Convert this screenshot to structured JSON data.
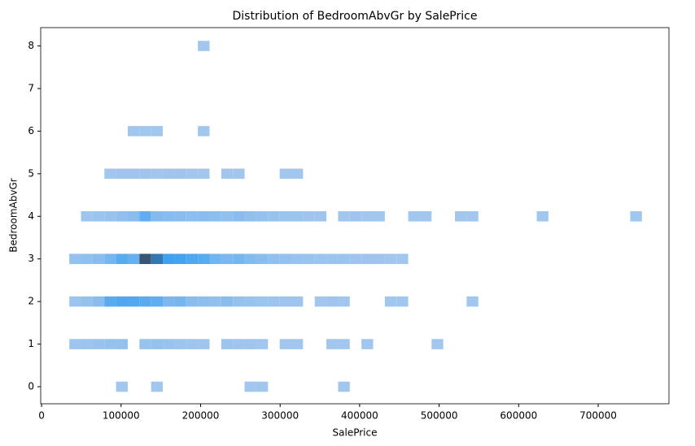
{
  "chart_data": {
    "type": "heatmap",
    "title": "Distribution of BedroomAbvGr by SalePrice",
    "x_label": "SalePrice",
    "y_label": "BedroomAbvGr",
    "bins": [
      34900,
      49596,
      64292,
      78988,
      93684,
      108380,
      123076,
      137771,
      152467,
      167163,
      181859,
      196555,
      211251,
      225947,
      240643,
      255339,
      270035,
      284731,
      299427,
      314123,
      328819,
      343515,
      358210,
      372906,
      387602,
      402298,
      416994,
      431690,
      446386,
      461082,
      475778,
      490474,
      505170,
      519866,
      534562,
      549257,
      563953,
      578649,
      593345,
      608041,
      622737,
      637433,
      652129,
      666825,
      681521,
      696217,
      710913,
      725608,
      740304,
      755000
    ],
    "y": [
      0,
      1,
      2,
      3,
      4,
      5,
      6,
      7,
      8
    ],
    "counts": [
      [
        0,
        0,
        0,
        0,
        1,
        0,
        0,
        1,
        0,
        0,
        0,
        0,
        0,
        0,
        0,
        1,
        1,
        0,
        0,
        0,
        0,
        0,
        0,
        1,
        0,
        0,
        0,
        0,
        0,
        0,
        0,
        0,
        0,
        0,
        0,
        0,
        0,
        0,
        0,
        0,
        0,
        0,
        0,
        0,
        0,
        0,
        0,
        0,
        0
      ],
      [
        2,
        3,
        4,
        5,
        5,
        0,
        4,
        5,
        4,
        3,
        2,
        2,
        0,
        3,
        2,
        2,
        1,
        0,
        1,
        1,
        0,
        0,
        1,
        1,
        0,
        1,
        0,
        0,
        0,
        0,
        0,
        1,
        0,
        0,
        0,
        0,
        0,
        0,
        0,
        0,
        0,
        0,
        0,
        0,
        0,
        0,
        0,
        0,
        0
      ],
      [
        3,
        5,
        8,
        22,
        25,
        24,
        22,
        20,
        12,
        14,
        8,
        7,
        6,
        8,
        5,
        4,
        3,
        3,
        2,
        2,
        0,
        1,
        2,
        1,
        0,
        0,
        0,
        1,
        1,
        0,
        0,
        0,
        0,
        0,
        1,
        0,
        0,
        0,
        0,
        0,
        0,
        0,
        0,
        0,
        0,
        0,
        0,
        0,
        0
      ],
      [
        5,
        6,
        8,
        14,
        22,
        18,
        65,
        50,
        30,
        28,
        25,
        22,
        15,
        12,
        14,
        10,
        8,
        6,
        5,
        4,
        4,
        3,
        3,
        3,
        2,
        2,
        2,
        1,
        1,
        0,
        0,
        0,
        0,
        0,
        0,
        0,
        0,
        0,
        0,
        0,
        0,
        0,
        0,
        0,
        0,
        0,
        0,
        0,
        0
      ],
      [
        0,
        2,
        3,
        4,
        6,
        8,
        20,
        10,
        9,
        8,
        7,
        8,
        7,
        6,
        8,
        6,
        5,
        4,
        3,
        3,
        2,
        2,
        0,
        1,
        2,
        1,
        1,
        0,
        0,
        1,
        1,
        0,
        0,
        1,
        1,
        0,
        0,
        0,
        0,
        0,
        1,
        0,
        0,
        0,
        0,
        0,
        0,
        0,
        1
      ],
      [
        0,
        0,
        0,
        1,
        2,
        2,
        2,
        1,
        2,
        2,
        1,
        1,
        0,
        1,
        1,
        0,
        0,
        0,
        1,
        1,
        0,
        0,
        0,
        0,
        0,
        0,
        0,
        0,
        0,
        0,
        0,
        0,
        0,
        0,
        0,
        0,
        0,
        0,
        0,
        0,
        0,
        0,
        0,
        0,
        0,
        0,
        0,
        0,
        0
      ],
      [
        0,
        0,
        0,
        0,
        0,
        1,
        1,
        1,
        0,
        0,
        0,
        1,
        0,
        0,
        0,
        0,
        0,
        0,
        0,
        0,
        0,
        0,
        0,
        0,
        0,
        0,
        0,
        0,
        0,
        0,
        0,
        0,
        0,
        0,
        0,
        0,
        0,
        0,
        0,
        0,
        0,
        0,
        0,
        0,
        0,
        0,
        0,
        0,
        0
      ],
      [
        0,
        0,
        0,
        0,
        0,
        0,
        0,
        0,
        0,
        0,
        0,
        0,
        0,
        0,
        0,
        0,
        0,
        0,
        0,
        0,
        0,
        0,
        0,
        0,
        0,
        0,
        0,
        0,
        0,
        0,
        0,
        0,
        0,
        0,
        0,
        0,
        0,
        0,
        0,
        0,
        0,
        0,
        0,
        0,
        0,
        0,
        0,
        0,
        0
      ],
      [
        0,
        0,
        0,
        0,
        0,
        0,
        0,
        0,
        0,
        0,
        0,
        1,
        0,
        0,
        0,
        0,
        0,
        0,
        0,
        0,
        0,
        0,
        0,
        0,
        0,
        0,
        0,
        0,
        0,
        0,
        0,
        0,
        0,
        0,
        0,
        0,
        0,
        0,
        0,
        0,
        0,
        0,
        0,
        0,
        0,
        0,
        0,
        0,
        0
      ]
    ],
    "cmap": [
      "#a6c8ee",
      "#2b9af0",
      "#3d4a5c"
    ],
    "vmax": 70,
    "xlim": [
      -1100,
      789000
    ],
    "ylim": [
      -0.4,
      8.43
    ],
    "xticks": [
      0,
      100000,
      200000,
      300000,
      400000,
      500000,
      600000,
      700000
    ],
    "yticks": [
      0,
      1,
      2,
      3,
      4,
      5,
      6,
      7,
      8
    ]
  }
}
